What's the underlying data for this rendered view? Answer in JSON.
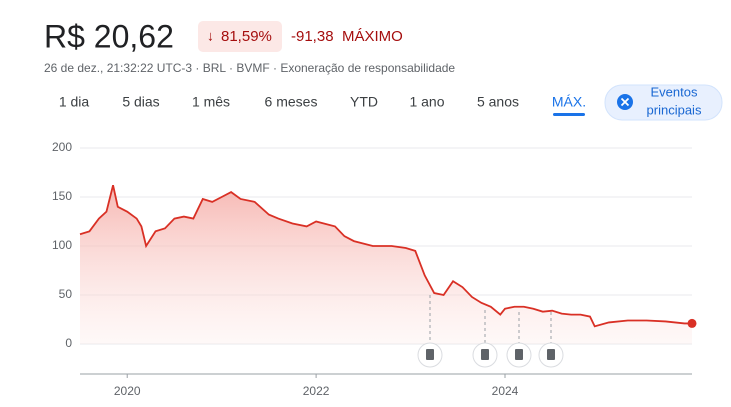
{
  "header": {
    "price": "R$ 20,62",
    "change_pct": "81,59%",
    "change_abs": "-91,38",
    "period": "MÁXIMO",
    "meta": "26 de dez., 21:32:22 UTC-3 · BRL · BVMF · Exoneração de responsabilidade"
  },
  "tabs": [
    "1 dia",
    "5 dias",
    "1 mês",
    "6 meses",
    "YTD",
    "1 ano",
    "5 anos",
    "MÁX."
  ],
  "events_button": [
    "Eventos",
    "principais"
  ],
  "chart_data": {
    "type": "line",
    "series": [
      {
        "name": "BVMF",
        "color": "#d93025",
        "x": [
          2019.5,
          2019.6,
          2019.7,
          2019.78,
          2019.85,
          2019.9,
          2020.0,
          2020.1,
          2020.15,
          2020.2,
          2020.3,
          2020.4,
          2020.5,
          2020.6,
          2020.7,
          2020.8,
          2020.9,
          2021.0,
          2021.1,
          2021.2,
          2021.35,
          2021.5,
          2021.6,
          2021.75,
          2021.9,
          2022.0,
          2022.2,
          2022.3,
          2022.4,
          2022.6,
          2022.8,
          2022.95,
          2023.05,
          2023.15,
          2023.25,
          2023.35,
          2023.45,
          2023.55,
          2023.65,
          2023.75,
          2023.85,
          2023.95,
          2024.0,
          2024.1,
          2024.2,
          2024.3,
          2024.4,
          2024.5,
          2024.6,
          2024.7,
          2024.8,
          2024.9,
          2024.95,
          2025.1,
          2025.3,
          2025.5,
          2025.7,
          2025.9,
          2025.98
        ],
        "values": [
          112,
          115,
          128,
          135,
          162,
          140,
          135,
          128,
          120,
          100,
          115,
          118,
          128,
          130,
          128,
          148,
          145,
          150,
          155,
          148,
          145,
          132,
          128,
          123,
          120,
          125,
          120,
          110,
          105,
          100,
          100,
          98,
          95,
          70,
          52,
          50,
          64,
          58,
          48,
          42,
          38,
          30,
          36,
          38,
          38,
          36,
          33,
          34,
          31,
          30,
          30,
          28,
          18,
          22,
          24,
          24,
          23,
          21,
          21
        ]
      }
    ],
    "xlim": [
      2019.5,
      2025.98
    ],
    "xticks": [
      2020,
      2022,
      2024
    ],
    "ylim": [
      0,
      200
    ],
    "yticks": [
      0,
      50,
      100,
      150,
      200
    ],
    "grid": true
  }
}
